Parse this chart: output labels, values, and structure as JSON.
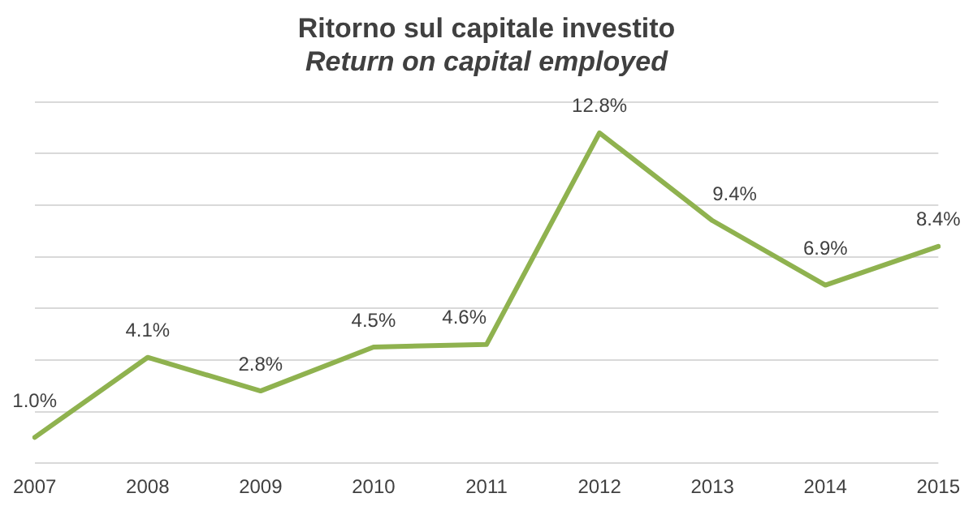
{
  "chart_data": {
    "type": "line",
    "title": "Ritorno sul capitale investito",
    "subtitle": "Return on capital employed",
    "categories": [
      "2007",
      "2008",
      "2009",
      "2010",
      "2011",
      "2012",
      "2013",
      "2014",
      "2015"
    ],
    "series": [
      {
        "color": "#8fb24f",
        "values": [
          1.0,
          4.1,
          2.8,
          4.5,
          4.6,
          12.8,
          9.4,
          6.9,
          8.4
        ],
        "value_labels": [
          "1.0%",
          "4.1%",
          "2.8%",
          "4.5%",
          "4.6%",
          "12.8%",
          "9.4%",
          "6.9%",
          "8.4%"
        ]
      }
    ],
    "ylim": [
      0,
      14
    ],
    "yticks": [
      0,
      2,
      4,
      6,
      8,
      10,
      12,
      14
    ],
    "grid": "y",
    "tick_labels": "x",
    "legend": false,
    "marker": "none",
    "line_style": "solid"
  }
}
